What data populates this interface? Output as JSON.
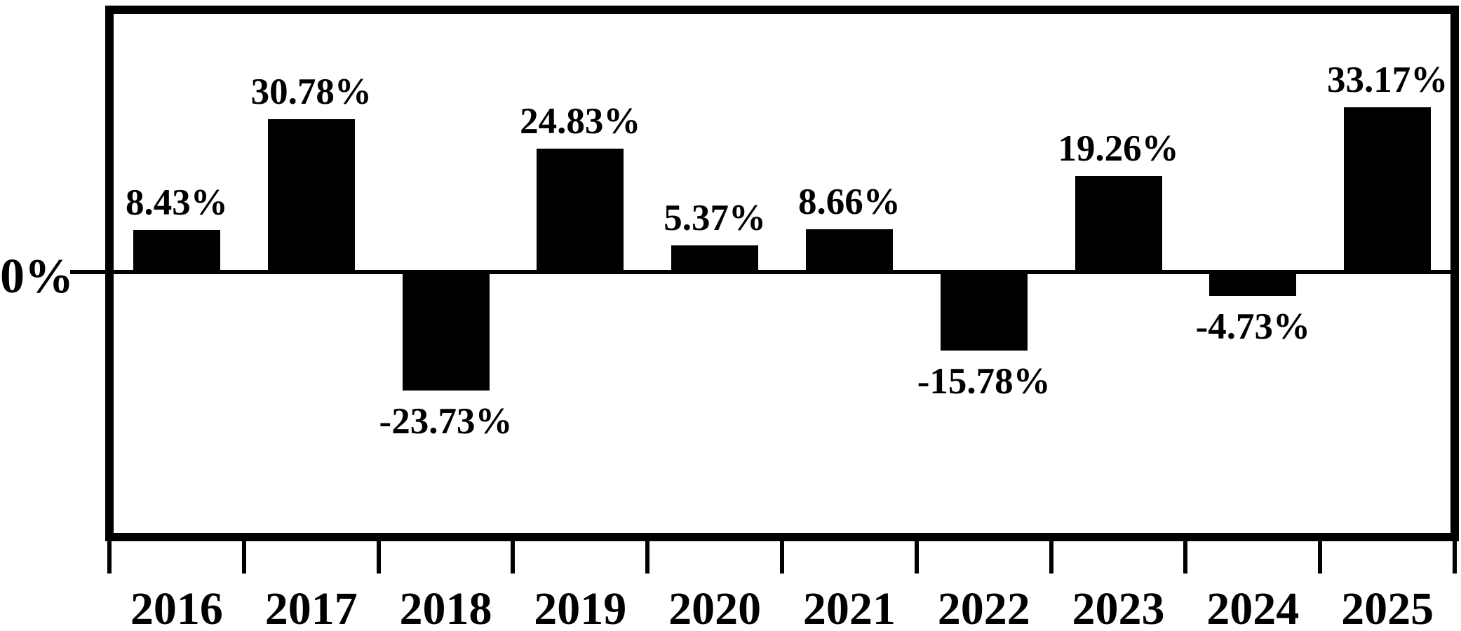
{
  "chart_data": {
    "type": "bar",
    "title": "",
    "xlabel": "",
    "ylabel": "",
    "categories": [
      "2016",
      "2017",
      "2018",
      "2019",
      "2020",
      "2021",
      "2022",
      "2023",
      "2024",
      "2025"
    ],
    "values": [
      8.43,
      30.78,
      -23.73,
      24.83,
      5.37,
      8.66,
      -15.78,
      19.26,
      -4.73,
      33.17
    ],
    "labels": [
      "8.43%",
      "30.78%",
      "-23.73%",
      "24.83%",
      "5.37%",
      "8.66%",
      "-15.78%",
      "19.26%",
      "-4.73%",
      "33.17%"
    ],
    "y_axis": {
      "zero_label": "0%"
    },
    "ylim": [
      -52,
      52
    ],
    "grid": false,
    "legend": null,
    "bar_color": "#000000",
    "background_color": "#ffffff",
    "text_color": "#000000"
  }
}
